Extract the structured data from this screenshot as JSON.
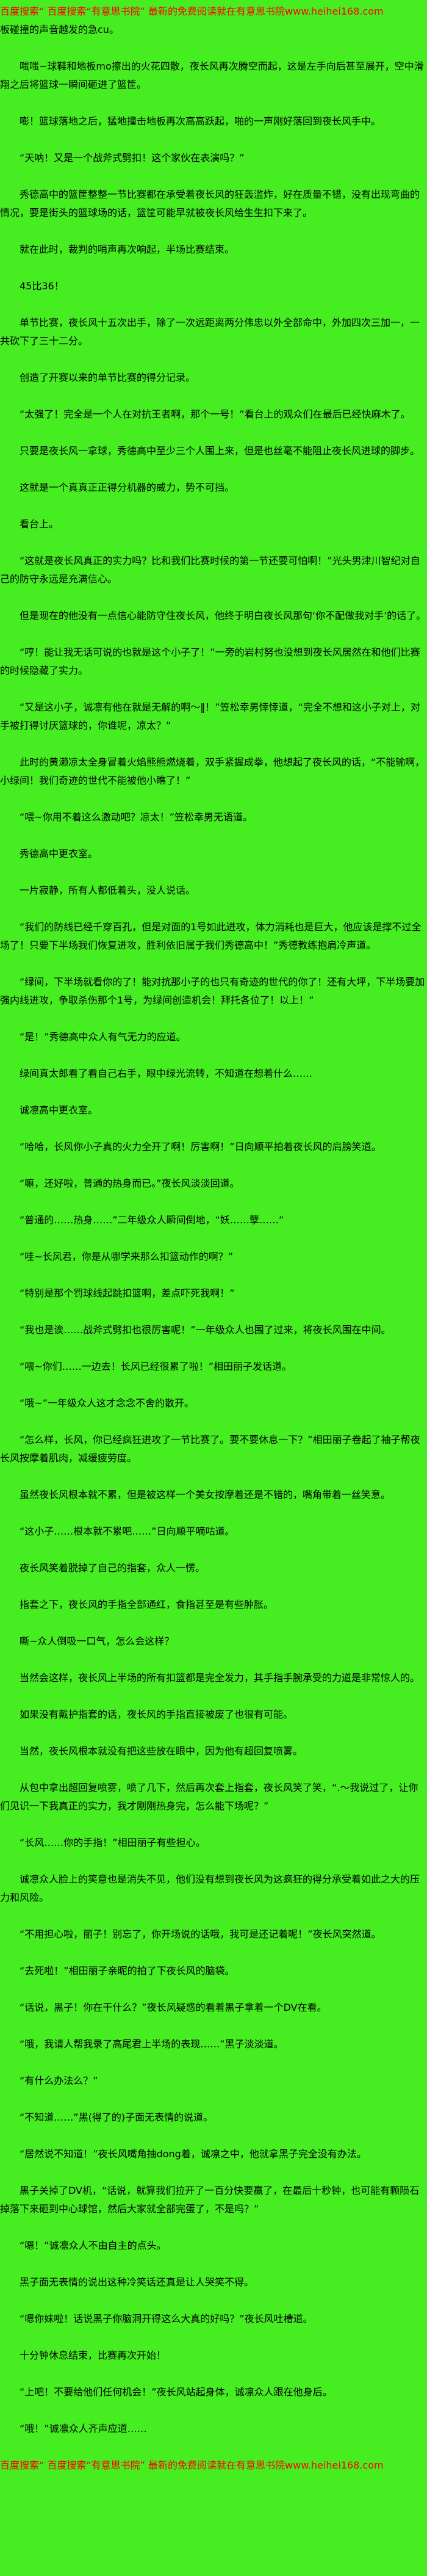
{
  "page": {
    "bg_color": "#46EE21",
    "text_color": "#000000",
    "promo_color": "#FF0000",
    "promo_site_name": "有意思书院",
    "promo_url": "www.heihei168.com",
    "paragraphs": [
      {
        "text": "百度搜索“ 百度搜索“有意思书院” 最新的免费阅读就在有意思书院www.heihei168.com",
        "promo": true,
        "indent": false
      },
      {
        "text": "板碰撞的声音越发的急cu。",
        "indent": false
      },
      {
        "text": "嗤嗤~球鞋和地板mo擦出的火花四散，夜长风再次腾空而起，这是左手向后甚至展开，空中滑翔之后将篮球一瞬间砸进了篮筐。",
        "indent": true
      },
      {
        "text": "嘭！篮球落地之后，猛地撞击地板再次高高跃起，啪的一声刚好落回到夜长风手中。",
        "indent": true
      },
      {
        "text": "“天呐！又是一个战斧式劈扣！这个家伙在表演吗？”",
        "indent": true
      },
      {
        "text": "秀德高中的篮筐整整一节比赛都在承受着夜长风的狂轰滥炸，好在质量不错，没有出现弯曲的情况，要是街头的篮球场的话，篮筐可能早就被夜长风给生生扣下来了。",
        "indent": true
      },
      {
        "text": "就在此时，裁判的哨声再次响起，半场比赛结束。",
        "indent": true
      },
      {
        "text": "45比36！",
        "indent": true
      },
      {
        "text": "单节比赛，夜长风十五次出手，除了一次远距离两分伟忠以外全部命中，外加四次三加一，一共砍下了三十二分。",
        "indent": true
      },
      {
        "text": "创造了开赛以来的单节比赛的得分记录。",
        "indent": true
      },
      {
        "text": "“太强了！完全是一个人在对抗王者啊，那个一号！”看台上的观众们在最后已经快麻木了。",
        "indent": true
      },
      {
        "text": "只要是夜长风一拿球，秀德高中至少三个人围上来，但是也丝毫不能阻止夜长风进球的脚步。",
        "indent": true
      },
      {
        "text": "这就是一个真真正正得分机器的威力，势不可挡。",
        "indent": true
      },
      {
        "text": "看台上。",
        "indent": true
      },
      {
        "text": "“这就是夜长风真正的实力吗？比和我们比赛时候的第一节还要可怕啊！”光头男津川智纪对自己的防守永远是充满信心。",
        "indent": true
      },
      {
        "text": "但是现在的他没有一点信心能防守住夜长风，他终于明白夜长风那句‘你不配做我对手’的话了。",
        "indent": true
      },
      {
        "text": "“哼！能让我无话可说的也就是这个小子了！”一旁的岩村努也没想到夜长风居然在和他们比赛的时候隐藏了实力。",
        "indent": true
      },
      {
        "text": "“又是这小子，诚凛有他在就是无解的啊～‖！”笠松幸男悻悻道，“完全不想和这小子对上，对手被打得讨厌篮球的，你谁呢，凉太？”",
        "indent": true
      },
      {
        "text": "此时的黄濑凉太全身冒着火焰熊熊燃烧着，双手紧握成拳，他想起了夜长风的话，“不能输啊，小绿间！我们奇迹的世代不能被他小瞧了！”",
        "indent": true
      },
      {
        "text": "“喂~你用不着这么激动吧？凉太！”笠松幸男无语道。",
        "indent": true
      },
      {
        "text": "秀德高中更衣室。",
        "indent": true
      },
      {
        "text": "一片寂静，所有人都低着头，没人说话。",
        "indent": true
      },
      {
        "text": "“我们的防线已经千穿百孔，但是对面的1号如此进攻，体力消耗也是巨大，他应该是撑不过全场了！只要下半场我们恢复进攻，胜利依旧属于我们秀德高中！”秀德教练抱肩冷声道。",
        "indent": true
      },
      {
        "text": "“绿间，下半场就看你的了！能对抗那小子的也只有奇迹的世代的你了！还有大坪，下半场要加强内线进攻，争取杀伤那个1号，为绿间创造机会！拜托各位了！以上！”",
        "indent": true
      },
      {
        "text": "“是！”秀德高中众人有气无力的应道。",
        "indent": true
      },
      {
        "text": "绿间真太郎看了看自己右手，眼中绿光流转，不知道在想着什么……",
        "indent": true
      },
      {
        "text": "诚凛高中更衣室。",
        "indent": true
      },
      {
        "text": "“哈哈，长风你小子真的火力全开了啊！厉害啊！”日向顺平拍着夜长风的肩膀笑道。",
        "indent": true
      },
      {
        "text": "“嘛，还好啦，普通的热身而已。”夜长风淡淡回道。",
        "indent": true
      },
      {
        "text": "“普通的……热身……”二年级众人瞬间倒地，“妖……孽……”",
        "indent": true
      },
      {
        "text": "“哇~长风君，你是从哪学来那么扣篮动作的啊？”",
        "indent": true
      },
      {
        "text": "“特别是那个罚球线起跳扣篮啊，差点吓死我啊！”",
        "indent": true
      },
      {
        "text": "“我也是诶……战斧式劈扣也很厉害呢！”一年级众人也围了过来，将夜长风围在中间。",
        "indent": true
      },
      {
        "text": "“喂~你们……一边去！长风已经很累了啦！”相田丽子发话道。",
        "indent": true
      },
      {
        "text": "“哦~”一年级众人这才念念不舍的散开。",
        "indent": true
      },
      {
        "text": "“怎么样，长风，你已经疯狂进攻了一节比赛了。要不要休息一下？”相田丽子卷起了袖子帮夜长风按摩着肌肉，减缓疲劳度。",
        "indent": true
      },
      {
        "text": "虽然夜长风根本就不累，但是被这样一个美女按摩着还是不错的，嘴角带着一丝笑意。",
        "indent": true
      },
      {
        "text": "“这小子……根本就不累吧……”日向顺平嘀咕道。",
        "indent": true
      },
      {
        "text": "夜长风笑着脱掉了自己的指套，众人一愣。",
        "indent": true
      },
      {
        "text": "指套之下，夜长风的手指全部通红，食指甚至是有些肿胀。",
        "indent": true
      },
      {
        "text": "嘶~众人倒吸一口气，怎么会这样？",
        "indent": true
      },
      {
        "text": "当然会这样，夜长风上半场的所有扣篮都是完全发力，其手指手腕承受的力道是非常惊人的。",
        "indent": true
      },
      {
        "text": "如果没有戴护指套的话，夜长风的手指直接被废了也很有可能。",
        "indent": true
      },
      {
        "text": "当然，夜长风根本就没有把这些放在眼中，因为他有超回复喷雾。",
        "indent": true
      },
      {
        "text": "从包中拿出超回复喷雾，喷了几下，然后再次套上指套，夜长风笑了笑，“.～我说过了，让你们见识一下我真正的实力，我才刚刚热身完，怎么能下场呢？”",
        "indent": true
      },
      {
        "text": "“长风……你的手指！”相田丽子有些担心。",
        "indent": true
      },
      {
        "text": "诚凛众人脸上的笑意也是消失不见，他们没有想到夜长风为这疯狂的得分承受着如此之大的压力和风险。",
        "indent": true
      },
      {
        "text": "“不用担心啦，丽子！别忘了，你开场说的话哦，我可是还记着呢！”夜长风突然道。",
        "indent": true
      },
      {
        "text": "“去死啦！”相田丽子亲昵的拍了下夜长风的脑袋。",
        "indent": true
      },
      {
        "text": "“话说，黑子！你在干什么？”夜长风疑惑的看着黑子拿着一个DV在看。",
        "indent": true
      },
      {
        "text": "“哦，我请人帮我录了高尾君上半场的表现……”黑子淡淡道。",
        "indent": true
      },
      {
        "text": "“有什么办法么？”",
        "indent": true
      },
      {
        "text": "“不知道……”黑(得了的)子面无表情的说道。",
        "indent": true
      },
      {
        "text": "“居然说不知道！”夜长风嘴角抽dong着，诚凛之中，他就拿黑子完全没有办法。",
        "indent": true
      },
      {
        "text": "黑子关掉了DV机，“话说，就算我们拉开了一百分快要赢了，在最后十秒钟，也可能有颗陨石掉落下来砸到中心球馆，然后大家就全部完蛋了，不是吗？”",
        "indent": true
      },
      {
        "text": "“嗯！”诚凛众人不由自主的点头。",
        "indent": true
      },
      {
        "text": "黑子面无表情的说出这种冷笑话还真是让人哭笑不得。",
        "indent": true
      },
      {
        "text": "“嗯你妹啦！话说黑子你脑洞开得这么大真的好吗？”夜长风吐槽道。",
        "indent": true
      },
      {
        "text": "十分钟休息结束，比赛再次开始！",
        "indent": true
      },
      {
        "text": "“上吧！不要给他们任何机会！”夜长风站起身体，诚凛众人跟在他身后。",
        "indent": true
      },
      {
        "text": "“哦！”诚凛众人齐声应道……",
        "indent": true
      },
      {
        "text": "百度搜索“ 百度搜索“有意思书院” 最新的免费阅读就在有意思书院www.heihei168.com",
        "promo": true,
        "indent": false
      }
    ]
  }
}
